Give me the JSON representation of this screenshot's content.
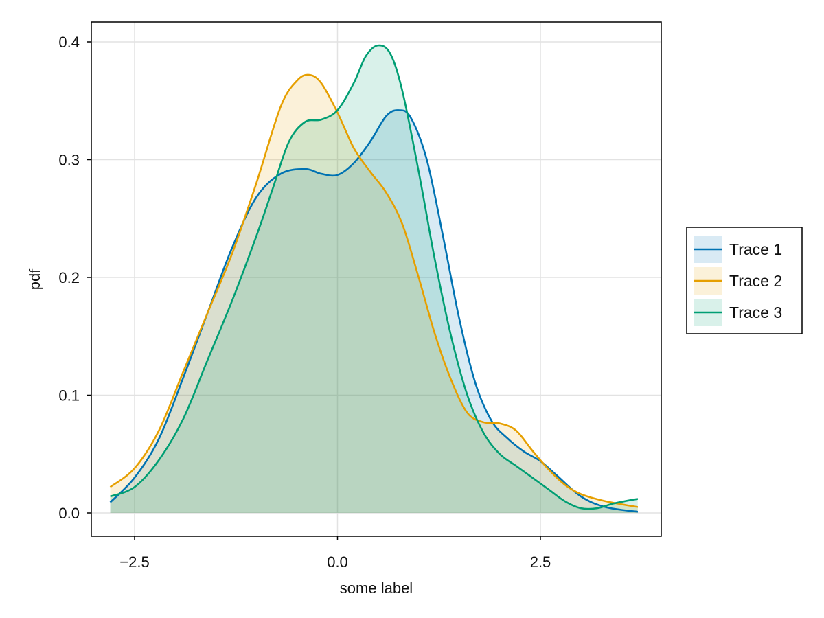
{
  "chart_data": {
    "type": "area",
    "title": "",
    "xlabel": "some label",
    "ylabel": "pdf",
    "xlim": [
      -3.0,
      4.0
    ],
    "ylim": [
      -0.02,
      0.42
    ],
    "x_ticks": [
      -2.5,
      0.0,
      2.5
    ],
    "x_tick_labels": [
      "−2.5",
      "0.0",
      "2.5"
    ],
    "y_ticks": [
      0.0,
      0.1,
      0.2,
      0.3,
      0.4
    ],
    "y_tick_labels": [
      "0.0",
      "0.1",
      "0.2",
      "0.3",
      "0.4"
    ],
    "grid": true,
    "legend_position": "right",
    "series": [
      {
        "name": "Trace 1",
        "color": "#0072B2",
        "fill": "rgba(0,114,178,0.15)",
        "x": [
          -2.8,
          -2.5,
          -2.2,
          -1.9,
          -1.6,
          -1.3,
          -1.0,
          -0.7,
          -0.4,
          -0.2,
          0.0,
          0.2,
          0.4,
          0.6,
          0.75,
          0.9,
          1.1,
          1.3,
          1.5,
          1.7,
          1.9,
          2.1,
          2.3,
          2.5,
          2.7,
          3.0,
          3.3,
          3.7
        ],
        "y": [
          0.009,
          0.03,
          0.063,
          0.115,
          0.17,
          0.225,
          0.268,
          0.288,
          0.292,
          0.288,
          0.287,
          0.297,
          0.315,
          0.337,
          0.342,
          0.336,
          0.3,
          0.235,
          0.165,
          0.11,
          0.078,
          0.063,
          0.052,
          0.044,
          0.032,
          0.014,
          0.005,
          0.001
        ]
      },
      {
        "name": "Trace 2",
        "color": "#E69F00",
        "fill": "rgba(230,159,0,0.15)",
        "x": [
          -2.8,
          -2.5,
          -2.2,
          -1.9,
          -1.6,
          -1.3,
          -1.0,
          -0.7,
          -0.5,
          -0.35,
          -0.2,
          0.0,
          0.2,
          0.4,
          0.6,
          0.8,
          1.0,
          1.2,
          1.4,
          1.6,
          1.8,
          2.0,
          2.2,
          2.4,
          2.6,
          2.8,
          3.0,
          3.3,
          3.7
        ],
        "y": [
          0.022,
          0.038,
          0.07,
          0.12,
          0.17,
          0.22,
          0.28,
          0.345,
          0.367,
          0.372,
          0.365,
          0.34,
          0.31,
          0.29,
          0.272,
          0.245,
          0.2,
          0.152,
          0.113,
          0.085,
          0.077,
          0.076,
          0.07,
          0.053,
          0.037,
          0.024,
          0.016,
          0.01,
          0.005
        ]
      },
      {
        "name": "Trace 3",
        "color": "#009E73",
        "fill": "rgba(0,158,115,0.15)",
        "x": [
          -2.8,
          -2.5,
          -2.2,
          -1.9,
          -1.6,
          -1.3,
          -1.0,
          -0.8,
          -0.6,
          -0.4,
          -0.2,
          0.0,
          0.2,
          0.35,
          0.5,
          0.65,
          0.8,
          1.0,
          1.2,
          1.4,
          1.6,
          1.8,
          2.0,
          2.2,
          2.4,
          2.6,
          2.8,
          3.0,
          3.2,
          3.4,
          3.7
        ],
        "y": [
          0.014,
          0.022,
          0.045,
          0.08,
          0.13,
          0.18,
          0.235,
          0.275,
          0.315,
          0.332,
          0.334,
          0.342,
          0.365,
          0.388,
          0.397,
          0.39,
          0.358,
          0.29,
          0.215,
          0.15,
          0.1,
          0.068,
          0.05,
          0.04,
          0.03,
          0.02,
          0.01,
          0.004,
          0.004,
          0.008,
          0.012
        ]
      }
    ]
  }
}
